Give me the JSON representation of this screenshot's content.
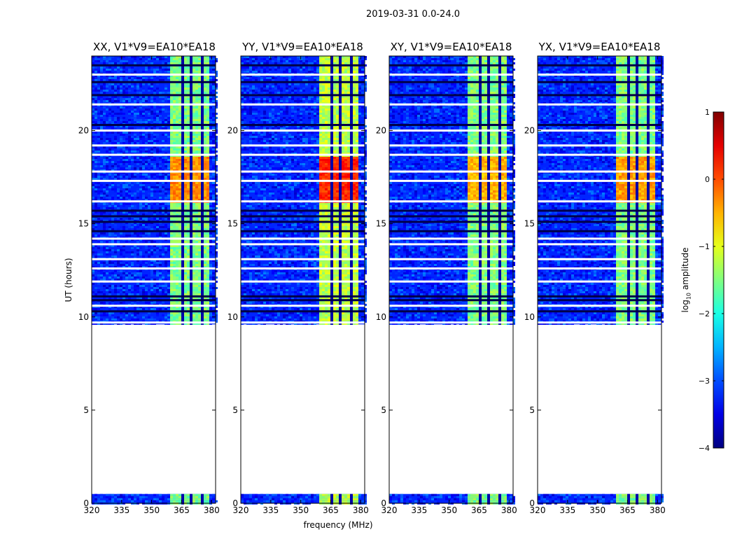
{
  "figure": {
    "suptitle": "2019-03-31 0.0-24.0",
    "xlabel": "frequency (MHz)",
    "ylabel": "UT (hours)",
    "colorbar": {
      "label": "log10 amplitude",
      "label_main": "log",
      "label_sub": "10",
      "label_rest": " amplitude",
      "range": [
        -4,
        1
      ],
      "ticks": [
        -4,
        -3,
        -2,
        -1,
        0,
        1
      ],
      "tick_labels": [
        "−4",
        "−3",
        "−2",
        "−1",
        "0",
        "1"
      ],
      "colormap": "jet"
    }
  },
  "chart_data": [
    {
      "type": "heatmap",
      "title": "XX, V1*V9=EA10*EA18",
      "xlabel": "frequency (MHz)",
      "ylabel": "UT (hours)",
      "xlim": [
        320,
        382
      ],
      "ylim": [
        0,
        24
      ],
      "xticks": [
        320,
        335,
        350,
        365,
        380
      ],
      "yticks": [
        0,
        5,
        10,
        15,
        20
      ],
      "signal_band_mhz": [
        359,
        378
      ],
      "peak_hours": [
        16.2,
        18.6
      ],
      "peak_level": -0.3,
      "background_level": -3.2,
      "band_level": -1.5,
      "data_coverage_hours": [
        [
          0.0,
          0.5
        ],
        [
          9.6,
          24.0
        ]
      ]
    },
    {
      "type": "heatmap",
      "title": "YY, V1*V9=EA10*EA18",
      "xlabel": "frequency (MHz)",
      "ylabel": "UT (hours)",
      "xlim": [
        320,
        382
      ],
      "ylim": [
        0,
        24
      ],
      "xticks": [
        320,
        335,
        350,
        365,
        380
      ],
      "yticks": [
        0,
        5,
        10,
        15,
        20
      ],
      "signal_band_mhz": [
        359,
        378
      ],
      "peak_hours": [
        16.2,
        18.6
      ],
      "peak_level": 0.2,
      "background_level": -3.2,
      "band_level": -1.2,
      "data_coverage_hours": [
        [
          0.0,
          0.5
        ],
        [
          9.6,
          24.0
        ]
      ]
    },
    {
      "type": "heatmap",
      "title": "XY, V1*V9=EA10*EA18",
      "xlabel": "frequency (MHz)",
      "ylabel": "UT (hours)",
      "xlim": [
        320,
        382
      ],
      "ylim": [
        0,
        24
      ],
      "xticks": [
        320,
        335,
        350,
        365,
        380
      ],
      "yticks": [
        0,
        5,
        10,
        15,
        20
      ],
      "signal_band_mhz": [
        359,
        378
      ],
      "peak_hours": [
        16.2,
        18.6
      ],
      "peak_level": -0.5,
      "background_level": -3.2,
      "band_level": -1.5,
      "data_coverage_hours": [
        [
          0.0,
          0.5
        ],
        [
          9.6,
          24.0
        ]
      ]
    },
    {
      "type": "heatmap",
      "title": "YX, V1*V9=EA10*EA18",
      "xlabel": "frequency (MHz)",
      "ylabel": "UT (hours)",
      "xlim": [
        320,
        382
      ],
      "ylim": [
        0,
        24
      ],
      "xticks": [
        320,
        335,
        350,
        365,
        380
      ],
      "yticks": [
        0,
        5,
        10,
        15,
        20
      ],
      "signal_band_mhz": [
        359,
        378
      ],
      "peak_hours": [
        16.2,
        18.6
      ],
      "peak_level": -0.4,
      "background_level": -3.2,
      "band_level": -1.5,
      "data_coverage_hours": [
        [
          0.0,
          0.5
        ],
        [
          9.6,
          24.0
        ]
      ]
    }
  ]
}
